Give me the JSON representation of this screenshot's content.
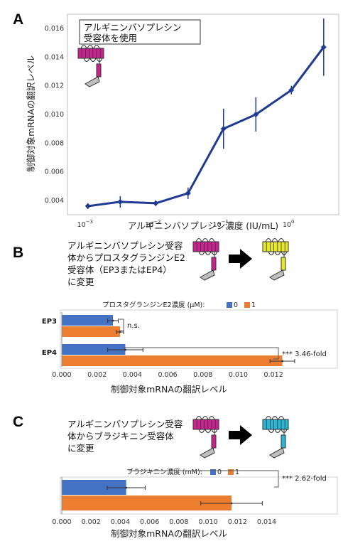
{
  "colors": {
    "line": "#1f3a93",
    "series0": "#4472c4",
    "series1": "#ed7d31",
    "receptor_av": "#c8248f",
    "receptor_ep": "#e8e82a",
    "receptor_bk": "#2ab7d6"
  },
  "panelA": {
    "letter": "A",
    "caption_lines": [
      "アルギニンバソプレシン",
      "受容体を使用"
    ],
    "ylabel": "制御対象mRNAの翻訳レベル",
    "xlabel": "アルギニンバソプレシン濃度 (IU/mL)",
    "ytick_labels": [
      "0.004",
      "0.006",
      "0.008",
      "0.010",
      "0.012",
      "0.014",
      "0.016"
    ],
    "xtick_bases": [
      "10",
      "10",
      "10",
      "10"
    ],
    "xtick_exps": [
      "−3",
      "−2",
      "−1",
      "0"
    ]
  },
  "panelB": {
    "letter": "B",
    "caption_lines": [
      "アルギニンバソプレシン受容",
      "体からプロスタグランジンE2",
      "受容体（EP3またはEP4）",
      "に変更"
    ],
    "legend_title": "プロスタグランジンE2濃度 (μM):",
    "legend_items": [
      "0",
      "1"
    ],
    "categories": [
      "EP3",
      "EP4"
    ],
    "annotations": [
      "n.s.",
      "*** 3.46-fold"
    ],
    "xlabel": "制御対象mRNAの翻訳レベル",
    "xtick_labels": [
      "0.000",
      "0.002",
      "0.004",
      "0.006",
      "0.008",
      "0.010",
      "0.012"
    ]
  },
  "panelC": {
    "letter": "C",
    "caption_lines": [
      "アルギニンバソプレシン受容",
      "体からブラジキニン受容体",
      "に変更"
    ],
    "legend_title": "ブラジキニン濃度 (mM):",
    "legend_items": [
      "0",
      "1"
    ],
    "annotations": [
      "*** 2.62-fold"
    ],
    "xlabel": "制御対象mRNAの翻訳レベル",
    "xtick_labels": [
      "0.000",
      "0.002",
      "0.004",
      "0.006",
      "0.008",
      "0.010",
      "0.012",
      "0.014"
    ]
  },
  "chart_data": [
    {
      "type": "line",
      "x": [
        0.001,
        0.003,
        0.01,
        0.03,
        0.1,
        0.3,
        1,
        3
      ],
      "y": [
        0.0036,
        0.0039,
        0.0038,
        0.0045,
        0.009,
        0.01,
        0.0117,
        0.0147
      ],
      "yerr": [
        0.0002,
        0.0004,
        0.0002,
        0.0004,
        0.0014,
        0.0012,
        0.0003,
        0.002
      ],
      "xscale": "log",
      "xlim": [
        0.0005,
        5
      ],
      "ylim": [
        0.003,
        0.017
      ],
      "xlabel": "アルギニンバソプレシン濃度 (IU/mL)",
      "ylabel": "制御対象mRNAの翻訳レベル",
      "grid": false
    },
    {
      "type": "bar",
      "orientation": "horizontal",
      "categories": [
        "EP3",
        "EP4"
      ],
      "series": [
        {
          "name": "0",
          "values": [
            0.0029,
            0.0036
          ],
          "err": [
            0.0003,
            0.001
          ]
        },
        {
          "name": "1",
          "values": [
            0.0033,
            0.0125
          ],
          "err": [
            0.0002,
            0.0007
          ]
        }
      ],
      "xlim": [
        0,
        0.013
      ],
      "xlabel": "制御対象mRNAの翻訳レベル",
      "legend": "top"
    },
    {
      "type": "bar",
      "orientation": "horizontal",
      "categories": [
        ""
      ],
      "series": [
        {
          "name": "0",
          "values": [
            0.0044
          ],
          "err": [
            0.0013
          ]
        },
        {
          "name": "1",
          "values": [
            0.0116
          ],
          "err": [
            0.0021
          ]
        }
      ],
      "xlim": [
        0,
        0.0148
      ],
      "xlabel": "制御対象mRNAの翻訳レベル",
      "legend": "top"
    }
  ]
}
